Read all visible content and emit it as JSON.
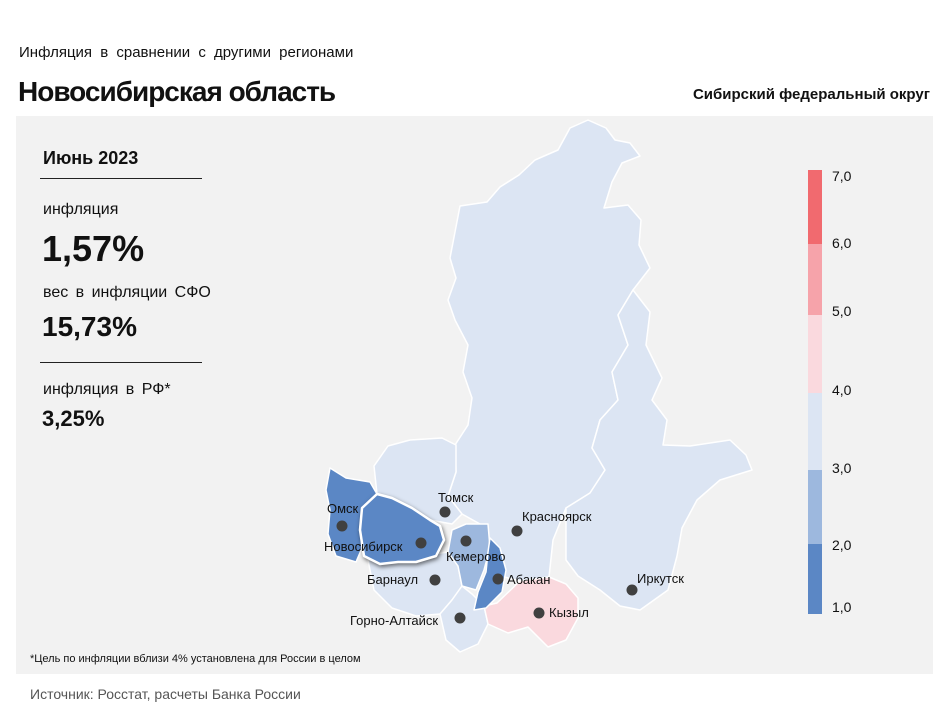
{
  "header": {
    "subtitle": "Инфляция  в сравнении  с другими  регионами",
    "region": "Новосибирская область",
    "district": "Сибирский федеральный округ"
  },
  "stats": {
    "month": "Июнь 2023",
    "inflation_label": "инфляция",
    "inflation_value": "1,57%",
    "weight_label": "вес в инфляции  СФО",
    "weight_value": "15,73%",
    "rf_label": "инфляция  в РФ*",
    "rf_value": "3,25%"
  },
  "cities": {
    "omsk": "Омск",
    "novosibirsk": "Новосибирск",
    "tomsk": "Томск",
    "kemerovo": "Кемерово",
    "barnaul": "Барнаул",
    "abakan": "Абакан",
    "gorno": "Горно-Алтайск",
    "krasnoyarsk": "Красноярск",
    "kyzyl": "Кызыл",
    "irkutsk": "Иркутск"
  },
  "legend": {
    "ticks": [
      "7,0",
      "6,0",
      "5,0",
      "4,0",
      "3,0",
      "2,0",
      "1,0"
    ],
    "colors": {
      "c1_2": "#5b87c5",
      "c2_3": "#9db8de",
      "c3_4": "#dce5f3",
      "c4_5": "#fad9de",
      "c5_6": "#f6a3aa",
      "c6_7": "#f16a6f"
    }
  },
  "footer": {
    "note": "*Цель по инфляции вблизи 4% установлена для России в целом",
    "source": "Источник: Росстат, расчеты Банка России"
  }
}
